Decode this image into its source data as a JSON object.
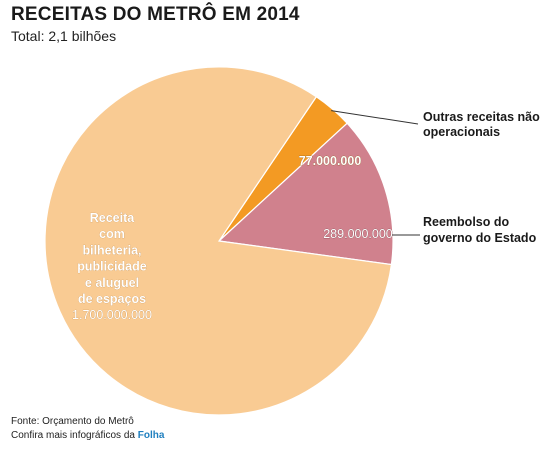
{
  "header": {
    "title": "RECEITAS DO METRÔ EM 2014",
    "subtitle": "Total: 2,1 bilhões"
  },
  "chart_data": {
    "type": "pie",
    "total": 2066000000,
    "slices": [
      {
        "label_lines": [
          "Receita",
          "com",
          "bilheteria,",
          "publicidade",
          "e aluguel",
          "de espaços"
        ],
        "value_label": "1.700.000.000",
        "value": 1700000000,
        "color": "#f9cb93"
      },
      {
        "label_lines": [
          "Outras receitas não",
          "operacionais"
        ],
        "value_label": "77.000.000",
        "value": 77000000,
        "color": "#f39a23"
      },
      {
        "label_lines": [
          "Reembolso do",
          "governo do Estado"
        ],
        "value_label": "289.000.000",
        "value": 289000000,
        "color": "#d0818d"
      }
    ]
  },
  "footer": {
    "source": "Fonte: Orçamento do Metrô",
    "more_prefix": "Confira mais infográficos da",
    "brand": "Folha"
  }
}
